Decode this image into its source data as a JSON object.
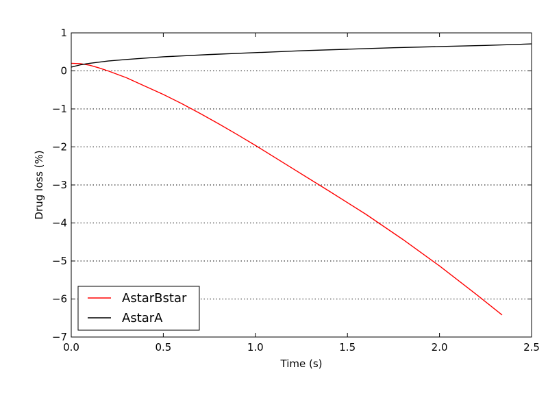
{
  "chart_data": {
    "type": "line",
    "title": "",
    "xlabel": "Time (s)",
    "ylabel": "Drug loss (%)",
    "xlim": [
      0.0,
      2.5
    ],
    "ylim": [
      -7,
      1
    ],
    "x_ticks": [
      0.0,
      0.5,
      1.0,
      1.5,
      2.0,
      2.5
    ],
    "x_tick_labels": [
      "0.0",
      "0.5",
      "1.0",
      "1.5",
      "2.0",
      "2.5"
    ],
    "y_ticks": [
      1,
      0,
      -1,
      -2,
      -3,
      -4,
      -5,
      -6,
      -7
    ],
    "y_tick_labels": [
      "1",
      "0",
      "−1",
      "−2",
      "−3",
      "−4",
      "−5",
      "−6",
      "−7"
    ],
    "grid": "horizontal dotted",
    "legend_position": "lower-left",
    "series": [
      {
        "name": "AstarBstar",
        "color": "#ff0000",
        "x": [
          0.0,
          0.05,
          0.1,
          0.15,
          0.2,
          0.3,
          0.4,
          0.5,
          0.6,
          0.7,
          0.8,
          0.9,
          1.0,
          1.2,
          1.4,
          1.6,
          1.8,
          2.0,
          2.2,
          2.34
        ],
        "y": [
          0.2,
          0.19,
          0.15,
          0.08,
          0.0,
          -0.18,
          -0.4,
          -0.62,
          -0.86,
          -1.12,
          -1.39,
          -1.67,
          -1.96,
          -2.56,
          -3.16,
          -3.77,
          -4.43,
          -5.13,
          -5.88,
          -6.42
        ]
      },
      {
        "name": "AstarA",
        "color": "#000000",
        "x": [
          0.0,
          0.05,
          0.1,
          0.2,
          0.3,
          0.5,
          0.75,
          1.0,
          1.25,
          1.5,
          1.75,
          2.0,
          2.25,
          2.5
        ],
        "y": [
          0.1,
          0.16,
          0.2,
          0.26,
          0.3,
          0.37,
          0.43,
          0.48,
          0.53,
          0.57,
          0.61,
          0.64,
          0.67,
          0.71
        ]
      }
    ]
  }
}
